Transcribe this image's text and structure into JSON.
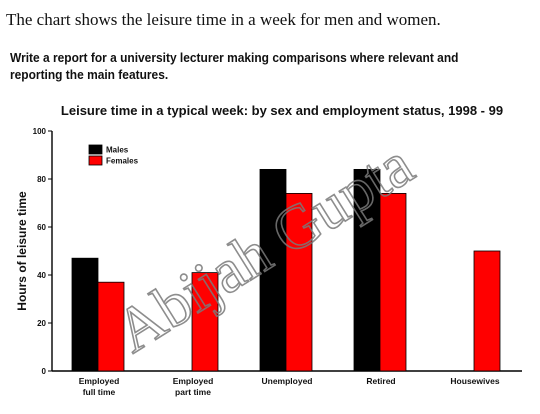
{
  "header": {
    "title": "The chart shows the leisure time in a week for men and women.",
    "task": "Write a report for a university lecturer making comparisons where relevant and reporting the main features."
  },
  "watermark": "Abijah Gupta",
  "chart_data": {
    "type": "bar",
    "title": "Leisure time in a typical week: by sex and employment status, 1998 - 99",
    "xlabel": "",
    "ylabel": "Hours of leisure time",
    "ylim": [
      0,
      100
    ],
    "yticks": [
      0,
      20,
      40,
      60,
      80,
      100
    ],
    "grid": false,
    "legend_position": "top-left",
    "categories": [
      [
        "Employed",
        "full time"
      ],
      [
        "Employed",
        "part time"
      ],
      [
        "Unemployed"
      ],
      [
        "Retired"
      ],
      [
        "Housewives"
      ]
    ],
    "series": [
      {
        "name": "Males",
        "color": "#000000",
        "values": [
          47,
          null,
          84,
          84,
          null
        ]
      },
      {
        "name": "Females",
        "color": "#ff0000",
        "values": [
          37,
          41,
          74,
          74,
          50
        ]
      }
    ]
  }
}
